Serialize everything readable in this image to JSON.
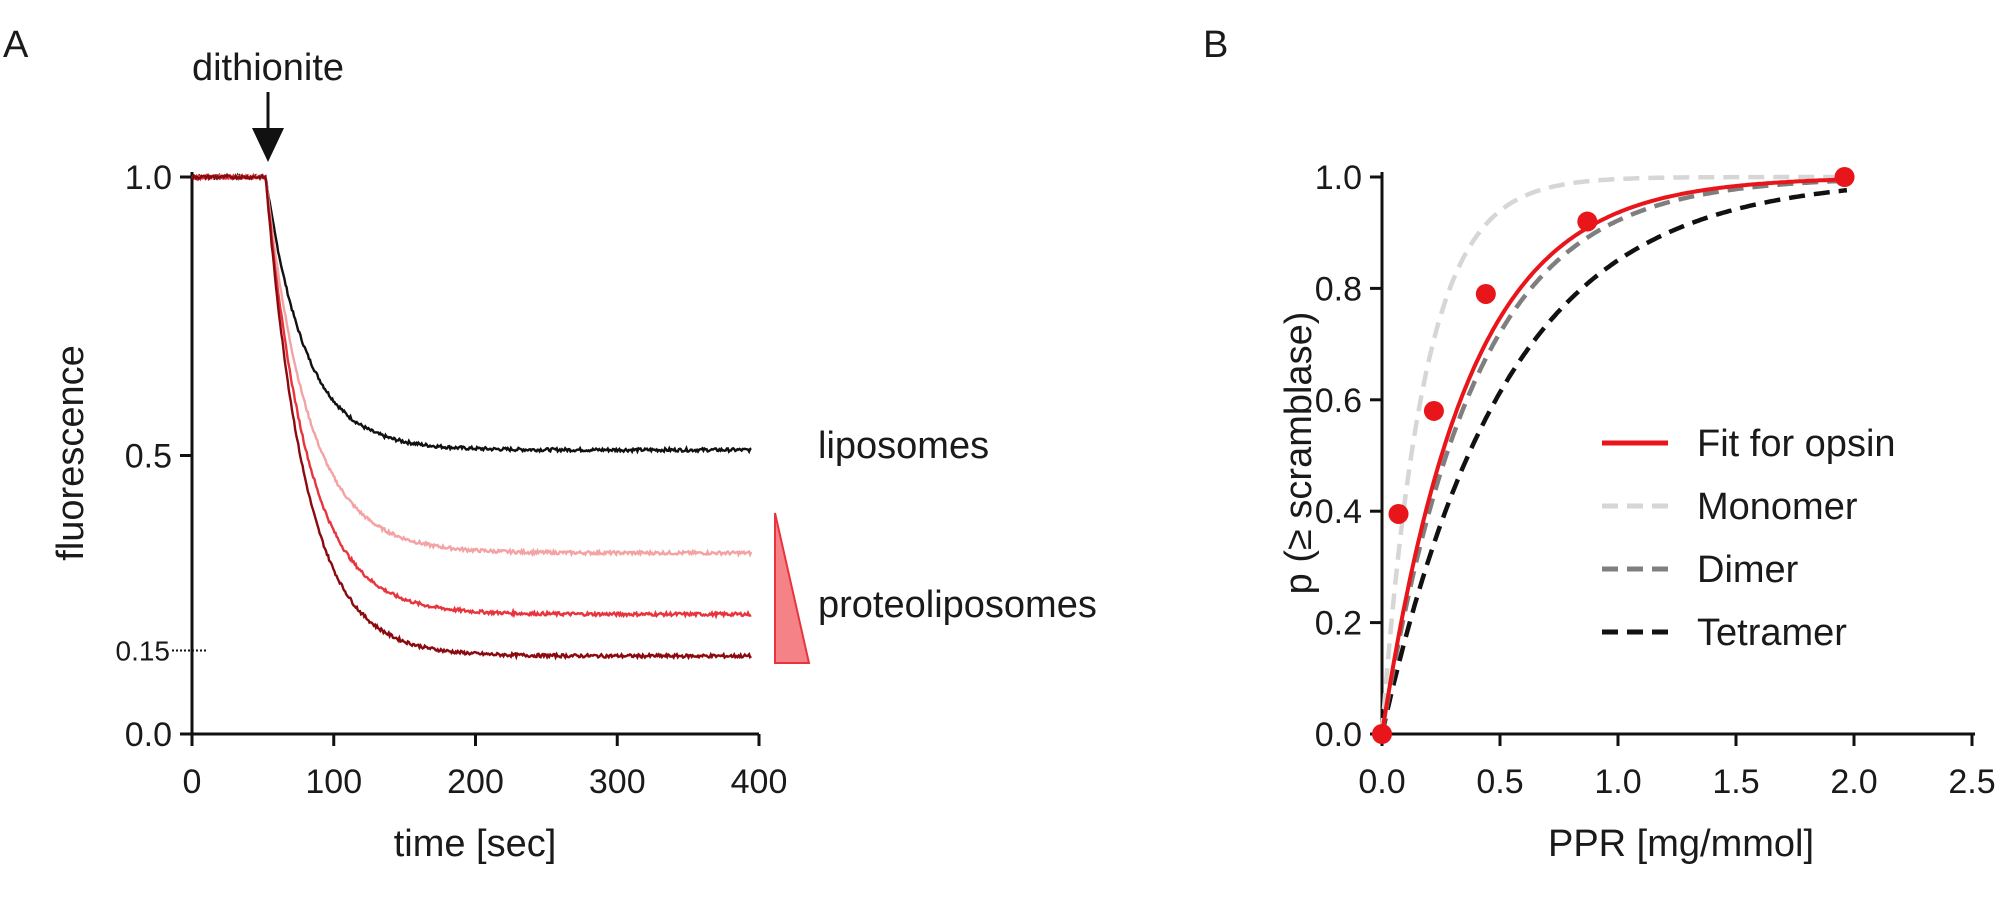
{
  "chart_data": [
    {
      "panel": "A",
      "type": "line",
      "xlabel": "time [sec]",
      "ylabel": "fluorescence",
      "xlim": [
        0,
        400
      ],
      "ylim": [
        0,
        1.0
      ],
      "x_ticks": [
        "0",
        "100",
        "200",
        "300",
        "400"
      ],
      "y_ticks": [
        "0.0",
        "0.5",
        "1.0"
      ],
      "y_ticks_values": [
        0.0,
        0.5,
        1.0
      ],
      "extra_y_tick": {
        "label": "0.15",
        "value": 0.15
      },
      "injection": {
        "label": "dithionite",
        "time": 52
      },
      "series": [
        {
          "name": "liposomes",
          "color": "#111111",
          "plateau": 0.51,
          "tau": 28
        },
        {
          "name": "proteoliposomes low",
          "color": "#f4a3a5",
          "plateau": 0.325,
          "tau": 30
        },
        {
          "name": "proteoliposomes mid",
          "color": "#e8353d",
          "plateau": 0.215,
          "tau": 29
        },
        {
          "name": "proteoliposomes high",
          "color": "#8b0a10",
          "plateau": 0.14,
          "tau": 28
        }
      ],
      "annotations": {
        "liposomes": "liposomes",
        "proteoliposomes": "proteoliposomes"
      },
      "wedge_color": "#f36c72"
    },
    {
      "panel": "B",
      "type": "scatter",
      "xlabel": "PPR [mg/mmol]",
      "ylabel": "p (≥ scramblase)",
      "xlim": [
        0,
        2.5
      ],
      "ylim": [
        0,
        1.0
      ],
      "x_ticks": [
        "0.0",
        "0.5",
        "1.0",
        "1.5",
        "2.0",
        "2.5"
      ],
      "y_ticks": [
        "0.0",
        "0.2",
        "0.4",
        "0.6",
        "0.8",
        "1.0"
      ],
      "points": {
        "x": [
          0.0,
          0.07,
          0.22,
          0.44,
          0.87,
          1.96
        ],
        "y": [
          0.0,
          0.395,
          0.58,
          0.79,
          0.92,
          1.0
        ],
        "color": "#e8151b"
      },
      "curves": [
        {
          "name": "Fit for opsin",
          "color": "#e8151b",
          "k": 2.75,
          "dash": "solid"
        },
        {
          "name": "Monomer",
          "color": "#d6d6d6",
          "k": 5.6,
          "dash": "dashed"
        },
        {
          "name": "Dimer",
          "color": "#7f7f7f",
          "k": 2.55,
          "dash": "dashed"
        },
        {
          "name": "Tetramer",
          "color": "#111111",
          "k": 1.9,
          "dash": "dashed"
        }
      ],
      "legend_position": "center-right"
    }
  ]
}
